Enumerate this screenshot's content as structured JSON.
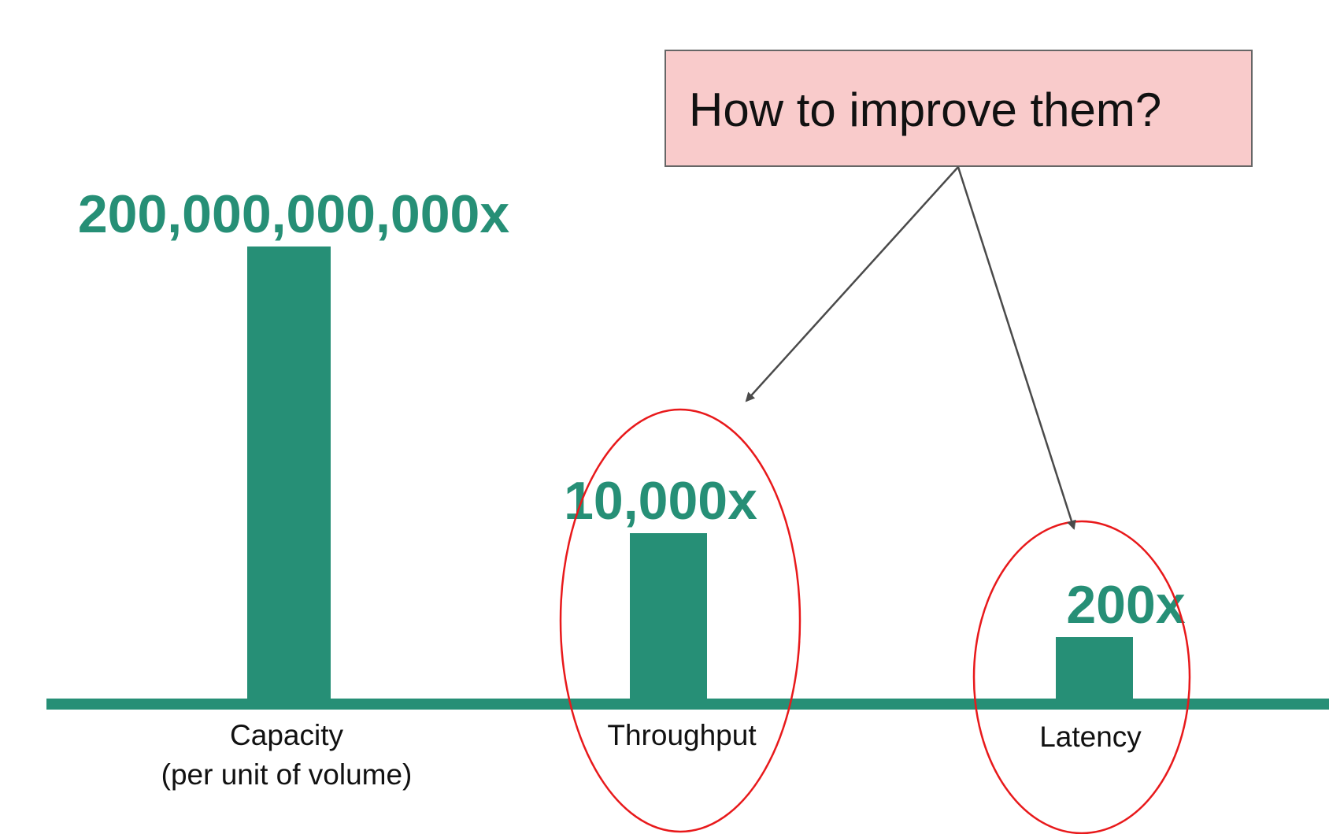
{
  "chart_data": {
    "type": "bar",
    "title": "",
    "xlabel": "",
    "ylabel": "",
    "categories": [
      "Capacity",
      "Throughput",
      "Latency"
    ],
    "category_sublabels": [
      "(per unit of volume)",
      "",
      ""
    ],
    "values": [
      200000000000,
      10000,
      200
    ],
    "value_labels": [
      "200,000,000,000x",
      "10,000x",
      "200x"
    ],
    "highlighted": [
      false,
      true,
      true
    ],
    "annotation": {
      "text": "How to improve them?",
      "points_to": [
        "Throughput",
        "Latency"
      ]
    },
    "colors": {
      "bar": "#268f76",
      "baseline": "#268f76",
      "value_text": "#268f76",
      "callout_fill": "#f9cbcb",
      "callout_border": "#666666",
      "highlight_ellipse": "#e8191b",
      "arrow": "#4a4a4a"
    }
  }
}
